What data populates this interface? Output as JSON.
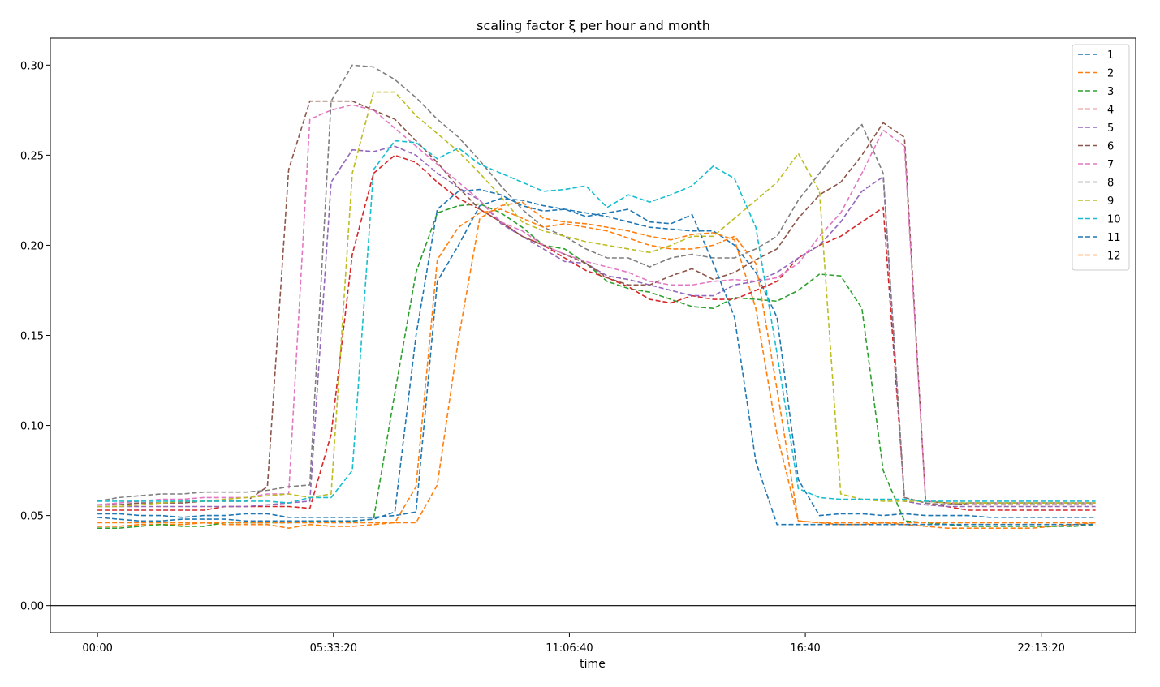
{
  "chart_data": {
    "type": "line",
    "title": "scaling factor ξ per hour and month",
    "xlabel": "time",
    "ylabel": "",
    "line_style": "dashed",
    "grid": false,
    "legend_position": "upper-right",
    "xlim_seconds": [
      -4000,
      88000
    ],
    "ylim": [
      -0.015,
      0.315
    ],
    "x_ticks": [
      {
        "seconds": 0,
        "label": "00:00"
      },
      {
        "seconds": 20000,
        "label": "05:33:20"
      },
      {
        "seconds": 40000,
        "label": "11:06:40"
      },
      {
        "seconds": 60000,
        "label": "16:40"
      },
      {
        "seconds": 80000,
        "label": "22:13:20"
      }
    ],
    "y_ticks": [
      {
        "value": 0.0,
        "label": "0.00"
      },
      {
        "value": 0.05,
        "label": "0.05"
      },
      {
        "value": 0.1,
        "label": "0.10"
      },
      {
        "value": 0.15,
        "label": "0.15"
      },
      {
        "value": 0.2,
        "label": "0.20"
      },
      {
        "value": 0.25,
        "label": "0.25"
      },
      {
        "value": 0.3,
        "label": "0.30"
      }
    ],
    "reference_line": {
      "value": 0.0
    },
    "x_seconds": [
      0,
      1800,
      3600,
      5400,
      7200,
      9000,
      10800,
      12600,
      14400,
      16200,
      18000,
      19800,
      21600,
      23400,
      25200,
      27000,
      28800,
      30600,
      32400,
      34200,
      36000,
      37800,
      39600,
      41400,
      43200,
      45000,
      46800,
      48600,
      50400,
      52200,
      54000,
      55800,
      57600,
      59400,
      61200,
      63000,
      64800,
      66600,
      68400,
      70200,
      72000,
      73800,
      75600,
      77400,
      79200,
      81000,
      82800,
      84600
    ],
    "series": [
      {
        "name": "1",
        "color": "#1f77b4",
        "values": [
          0.051,
          0.051,
          0.05,
          0.05,
          0.049,
          0.05,
          0.05,
          0.051,
          0.051,
          0.049,
          0.049,
          0.049,
          0.049,
          0.049,
          0.05,
          0.052,
          0.18,
          0.2,
          0.222,
          0.226,
          0.225,
          0.222,
          0.22,
          0.218,
          0.216,
          0.213,
          0.21,
          0.209,
          0.208,
          0.208,
          0.2,
          0.185,
          0.16,
          0.07,
          0.05,
          0.051,
          0.051,
          0.05,
          0.051,
          0.05,
          0.05,
          0.05,
          0.049,
          0.049,
          0.049,
          0.049,
          0.049,
          0.049
        ]
      },
      {
        "name": "2",
        "color": "#ff7f0e",
        "values": [
          0.044,
          0.044,
          0.045,
          0.045,
          0.045,
          0.046,
          0.045,
          0.045,
          0.045,
          0.043,
          0.045,
          0.044,
          0.044,
          0.045,
          0.046,
          0.046,
          0.067,
          0.148,
          0.215,
          0.222,
          0.224,
          0.215,
          0.213,
          0.212,
          0.21,
          0.208,
          0.205,
          0.203,
          0.206,
          0.207,
          0.203,
          0.165,
          0.095,
          0.047,
          0.046,
          0.045,
          0.045,
          0.046,
          0.045,
          0.044,
          0.043,
          0.043,
          0.043,
          0.043,
          0.043,
          0.044,
          0.045,
          0.046
        ]
      },
      {
        "name": "3",
        "color": "#2ca02c",
        "values": [
          0.043,
          0.043,
          0.044,
          0.045,
          0.044,
          0.044,
          0.046,
          0.046,
          0.046,
          0.046,
          0.047,
          0.047,
          0.047,
          0.048,
          0.118,
          0.185,
          0.218,
          0.222,
          0.223,
          0.218,
          0.21,
          0.2,
          0.198,
          0.19,
          0.18,
          0.176,
          0.174,
          0.17,
          0.166,
          0.165,
          0.171,
          0.17,
          0.169,
          0.175,
          0.184,
          0.183,
          0.165,
          0.075,
          0.047,
          0.046,
          0.045,
          0.044,
          0.044,
          0.044,
          0.044,
          0.044,
          0.044,
          0.045
        ]
      },
      {
        "name": "4",
        "color": "#d62728",
        "values": [
          0.053,
          0.053,
          0.053,
          0.053,
          0.053,
          0.053,
          0.055,
          0.055,
          0.055,
          0.055,
          0.054,
          0.095,
          0.195,
          0.24,
          0.25,
          0.246,
          0.235,
          0.226,
          0.22,
          0.213,
          0.205,
          0.2,
          0.193,
          0.186,
          0.182,
          0.177,
          0.17,
          0.168,
          0.172,
          0.17,
          0.17,
          0.175,
          0.18,
          0.193,
          0.2,
          0.205,
          0.213,
          0.221,
          0.06,
          0.057,
          0.055,
          0.053,
          0.053,
          0.053,
          0.053,
          0.053,
          0.053,
          0.053
        ]
      },
      {
        "name": "5",
        "color": "#9467bd",
        "values": [
          0.055,
          0.055,
          0.055,
          0.055,
          0.055,
          0.055,
          0.055,
          0.055,
          0.056,
          0.057,
          0.058,
          0.235,
          0.253,
          0.252,
          0.255,
          0.25,
          0.24,
          0.232,
          0.225,
          0.212,
          0.205,
          0.198,
          0.191,
          0.19,
          0.183,
          0.181,
          0.178,
          0.175,
          0.172,
          0.172,
          0.178,
          0.18,
          0.185,
          0.193,
          0.2,
          0.213,
          0.23,
          0.238,
          0.058,
          0.056,
          0.055,
          0.055,
          0.055,
          0.055,
          0.055,
          0.055,
          0.055,
          0.055
        ]
      },
      {
        "name": "6",
        "color": "#8c564b",
        "values": [
          0.056,
          0.056,
          0.057,
          0.057,
          0.057,
          0.058,
          0.058,
          0.058,
          0.066,
          0.242,
          0.28,
          0.28,
          0.28,
          0.275,
          0.27,
          0.258,
          0.246,
          0.232,
          0.22,
          0.213,
          0.205,
          0.2,
          0.195,
          0.19,
          0.182,
          0.178,
          0.178,
          0.183,
          0.187,
          0.181,
          0.185,
          0.192,
          0.198,
          0.215,
          0.228,
          0.235,
          0.25,
          0.268,
          0.26,
          0.058,
          0.057,
          0.056,
          0.056,
          0.056,
          0.056,
          0.056,
          0.056,
          0.056
        ]
      },
      {
        "name": "7",
        "color": "#e377c2",
        "values": [
          0.056,
          0.057,
          0.058,
          0.059,
          0.059,
          0.06,
          0.06,
          0.06,
          0.062,
          0.062,
          0.27,
          0.275,
          0.278,
          0.275,
          0.265,
          0.255,
          0.245,
          0.235,
          0.225,
          0.213,
          0.208,
          0.2,
          0.195,
          0.191,
          0.188,
          0.185,
          0.18,
          0.178,
          0.178,
          0.18,
          0.181,
          0.18,
          0.182,
          0.19,
          0.205,
          0.218,
          0.24,
          0.264,
          0.255,
          0.058,
          0.057,
          0.057,
          0.057,
          0.057,
          0.057,
          0.057,
          0.057,
          0.057
        ]
      },
      {
        "name": "8",
        "color": "#7f7f7f",
        "values": [
          0.058,
          0.06,
          0.061,
          0.062,
          0.062,
          0.063,
          0.063,
          0.063,
          0.064,
          0.066,
          0.067,
          0.28,
          0.3,
          0.299,
          0.292,
          0.282,
          0.27,
          0.26,
          0.247,
          0.233,
          0.22,
          0.21,
          0.205,
          0.198,
          0.193,
          0.193,
          0.188,
          0.193,
          0.195,
          0.193,
          0.193,
          0.198,
          0.205,
          0.225,
          0.24,
          0.255,
          0.267,
          0.24,
          0.06,
          0.057,
          0.056,
          0.057,
          0.057,
          0.057,
          0.057,
          0.057,
          0.057,
          0.057
        ]
      },
      {
        "name": "9",
        "color": "#bcbd22",
        "values": [
          0.055,
          0.055,
          0.056,
          0.057,
          0.058,
          0.058,
          0.059,
          0.06,
          0.061,
          0.062,
          0.06,
          0.062,
          0.24,
          0.285,
          0.285,
          0.272,
          0.262,
          0.252,
          0.24,
          0.227,
          0.213,
          0.208,
          0.205,
          0.202,
          0.2,
          0.198,
          0.196,
          0.2,
          0.205,
          0.205,
          0.215,
          0.225,
          0.235,
          0.251,
          0.23,
          0.062,
          0.059,
          0.058,
          0.058,
          0.058,
          0.057,
          0.057,
          0.057,
          0.057,
          0.057,
          0.057,
          0.057,
          0.057
        ]
      },
      {
        "name": "10",
        "color": "#17becf",
        "values": [
          0.058,
          0.058,
          0.058,
          0.058,
          0.058,
          0.058,
          0.058,
          0.058,
          0.058,
          0.057,
          0.06,
          0.06,
          0.075,
          0.242,
          0.258,
          0.257,
          0.248,
          0.254,
          0.245,
          0.24,
          0.235,
          0.23,
          0.231,
          0.233,
          0.221,
          0.228,
          0.224,
          0.228,
          0.233,
          0.244,
          0.237,
          0.21,
          0.14,
          0.065,
          0.06,
          0.059,
          0.059,
          0.059,
          0.059,
          0.058,
          0.058,
          0.058,
          0.058,
          0.058,
          0.058,
          0.058,
          0.058,
          0.058
        ]
      },
      {
        "name": "11",
        "color": "#1f77b4",
        "values": [
          0.049,
          0.048,
          0.047,
          0.047,
          0.048,
          0.048,
          0.048,
          0.047,
          0.047,
          0.047,
          0.047,
          0.047,
          0.047,
          0.048,
          0.052,
          0.15,
          0.22,
          0.23,
          0.231,
          0.228,
          0.222,
          0.219,
          0.22,
          0.216,
          0.218,
          0.22,
          0.213,
          0.212,
          0.217,
          0.19,
          0.16,
          0.08,
          0.045,
          0.045,
          0.045,
          0.045,
          0.045,
          0.045,
          0.045,
          0.045,
          0.045,
          0.045,
          0.045,
          0.045,
          0.045,
          0.045,
          0.045,
          0.045
        ]
      },
      {
        "name": "12",
        "color": "#ff7f0e",
        "values": [
          0.046,
          0.046,
          0.046,
          0.046,
          0.046,
          0.046,
          0.046,
          0.046,
          0.046,
          0.046,
          0.046,
          0.046,
          0.046,
          0.046,
          0.046,
          0.066,
          0.192,
          0.21,
          0.218,
          0.22,
          0.215,
          0.21,
          0.212,
          0.21,
          0.208,
          0.204,
          0.2,
          0.198,
          0.198,
          0.2,
          0.205,
          0.19,
          0.12,
          0.047,
          0.046,
          0.046,
          0.046,
          0.046,
          0.046,
          0.046,
          0.046,
          0.046,
          0.046,
          0.046,
          0.046,
          0.046,
          0.046,
          0.046
        ]
      }
    ]
  }
}
